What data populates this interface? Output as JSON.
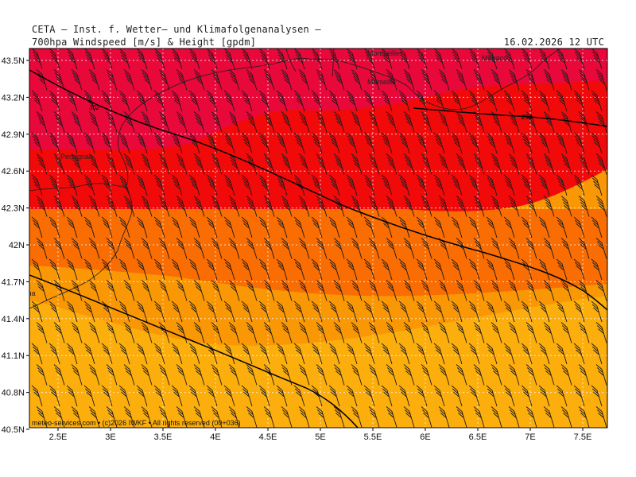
{
  "header": {
    "title": "CETA — Inst. f. Wetter— und Klimafolgenanalysen —",
    "subtitle": "700hpa Windspeed [m/s] & Height [gpdm]",
    "timestamp": "16.02.2026  12 UTC"
  },
  "axes": {
    "lat_labels": [
      "43.5N",
      "43.2N",
      "42.9N",
      "42.6N",
      "42.3N",
      "42N",
      "41.7N",
      "41.4N",
      "41.1N",
      "40.8N",
      "40.5N"
    ],
    "lon_labels": [
      "2.5E",
      "3E",
      "3.5E",
      "4E",
      "4.5E",
      "5E",
      "5.5E",
      "6E",
      "6.5E",
      "7E",
      "7.5E"
    ]
  },
  "places": [
    "Montpellier",
    "Marseille",
    "Perpignan",
    "Barcelona",
    "Monaco"
  ],
  "isohypse_labels": [
    "302",
    "294"
  ],
  "credit": "meteo-services.com  • (c)2026 IWKF  • All rights reserved  (00+036)",
  "colors": {
    "band_crimson": "#e8083a",
    "band_red": "#f20a0a",
    "band_orange": "#f96d02",
    "band_amber": "#fa9704",
    "band_yellow": "#fcae0d",
    "grid": "#ffffff",
    "barb": "#1a1a1a"
  }
}
